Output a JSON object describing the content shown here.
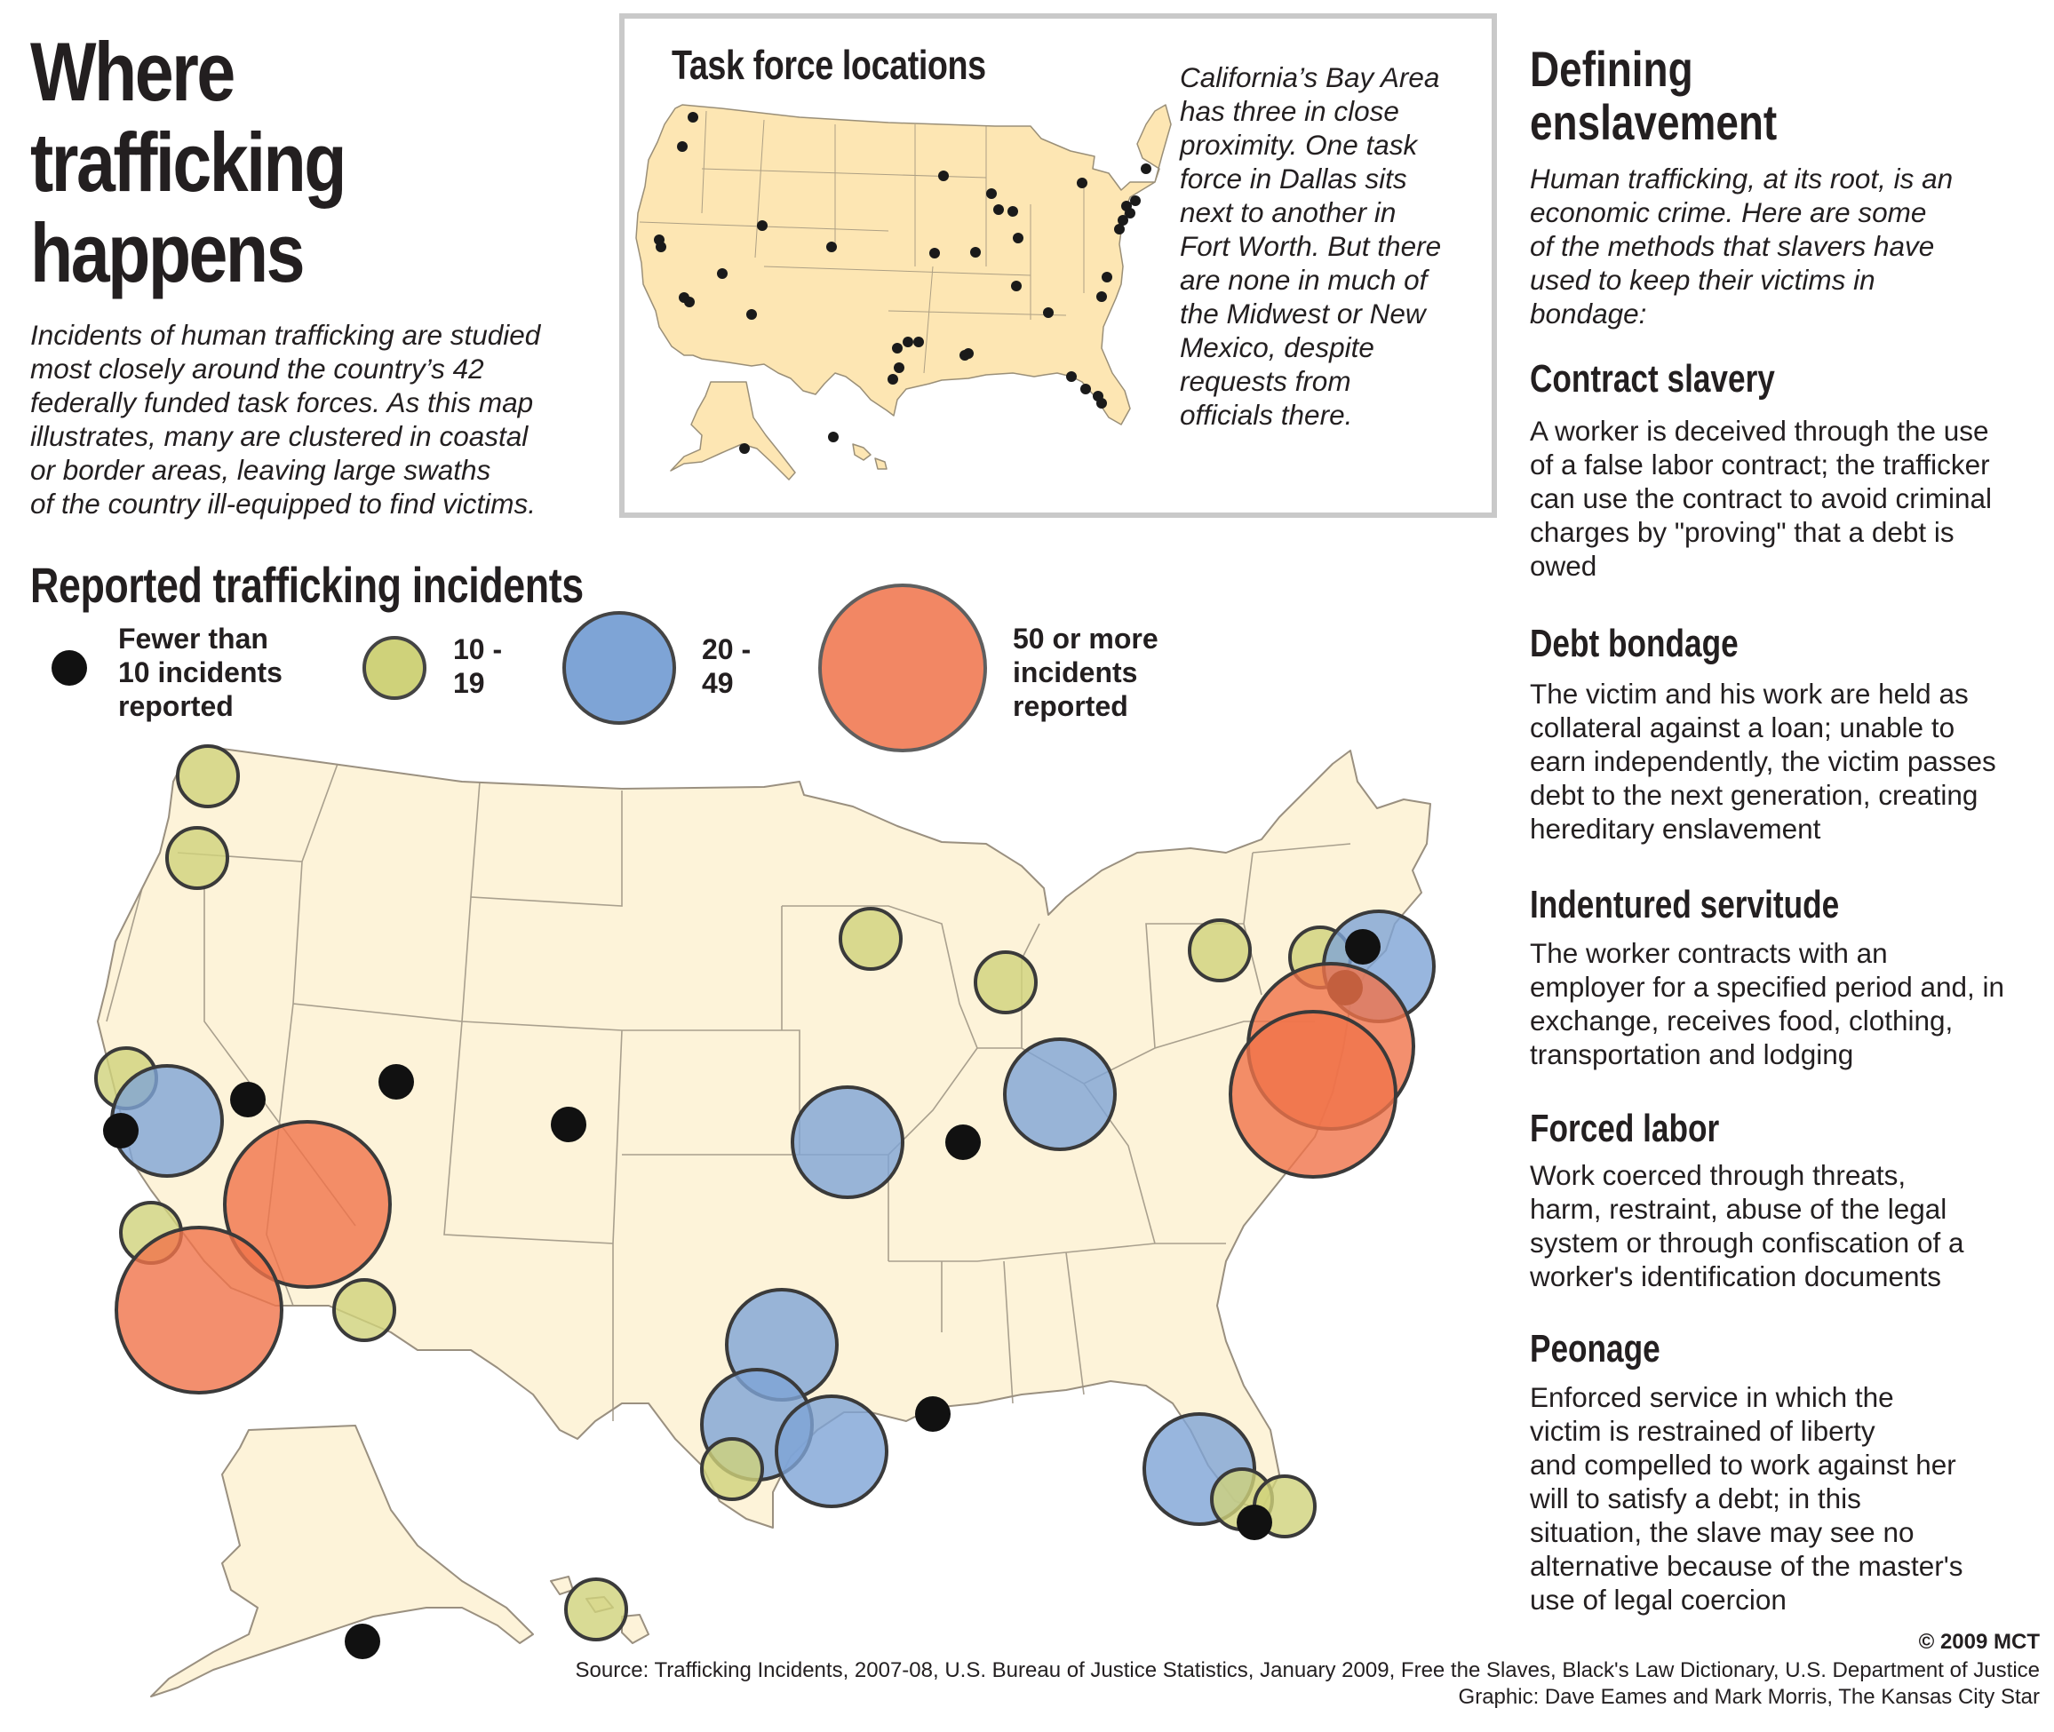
{
  "header": {
    "title": "Where\ntrafficking\nhappens",
    "intro": "Incidents of human trafficking are studied\nmost closely around the country’s 42\nfederally funded task forces. As this map\nillustrates, many are clustered in coastal\nor border areas, leaving large swaths\nof the country ill-equipped to find victims."
  },
  "inset": {
    "title": "Task force locations",
    "note": "California’s Bay Area\nhas three in close\nproximity. One task\nforce in Dallas sits\nnext to another in\nFort Worth. But there\nare none in much of\nthe Midwest or New\nMexico, despite\nrequests from\nofficials there."
  },
  "sidebar": {
    "title": "Defining\nenslavement",
    "intro": "Human trafficking, at its root, is an\neconomic crime. Here are some\nof the methods that slavers have\nused to keep their victims in\nbondage:",
    "items": [
      {
        "heading": "Contract slavery",
        "text": "A worker is deceived through the use\nof a false labor contract; the trafficker\ncan use the contract to avoid criminal\ncharges by \"proving\" that a debt is\nowed"
      },
      {
        "heading": "Debt bondage",
        "text": "The victim and his work are held as\ncollateral against a loan; unable to\nearn independently, the victim passes\ndebt to the next generation, creating\nhereditary enslavement"
      },
      {
        "heading": "Indentured servitude",
        "text": "The worker contracts with an\nemployer for a specified period and, in\nexchange, receives food, clothing,\ntransportation and lodging"
      },
      {
        "heading": "Forced labor",
        "text": "Work coerced through threats,\nharm, restraint, abuse of the legal\nsystem or through confiscation of a\nworker's identification documents"
      },
      {
        "heading": "Peonage",
        "text": "Enforced service in which the\nvictim is restrained of liberty\nand compelled to work against her\nwill to satisfy a debt; in this\nsituation, the slave may see no\nalternative because of the master's\nuse of legal coercion"
      }
    ]
  },
  "map": {
    "title": "Reported trafficking incidents",
    "legend": [
      {
        "label": "Fewer than\n10 incidents\nreported",
        "color": "#111111"
      },
      {
        "label": "10 -\n19",
        "color": "#cfd27a"
      },
      {
        "label": "20 -\n49",
        "color": "#7ea4d6"
      },
      {
        "label": "50 or more\nincidents\nreported",
        "color": "#f0734a"
      }
    ],
    "land_color": "#fdf3d9",
    "inset_land_color": "#fde6b3"
  },
  "footer": {
    "copyright": "© 2009 MCT",
    "source": "Source: Trafficking Incidents, 2007-08, U.S. Bureau of Justice Statistics, January 2009, Free the Slaves, Black's Law Dictionary, U.S. Department of Justice\nGraphic: Dave Eames and Mark Morris, The Kansas City Star"
  }
}
